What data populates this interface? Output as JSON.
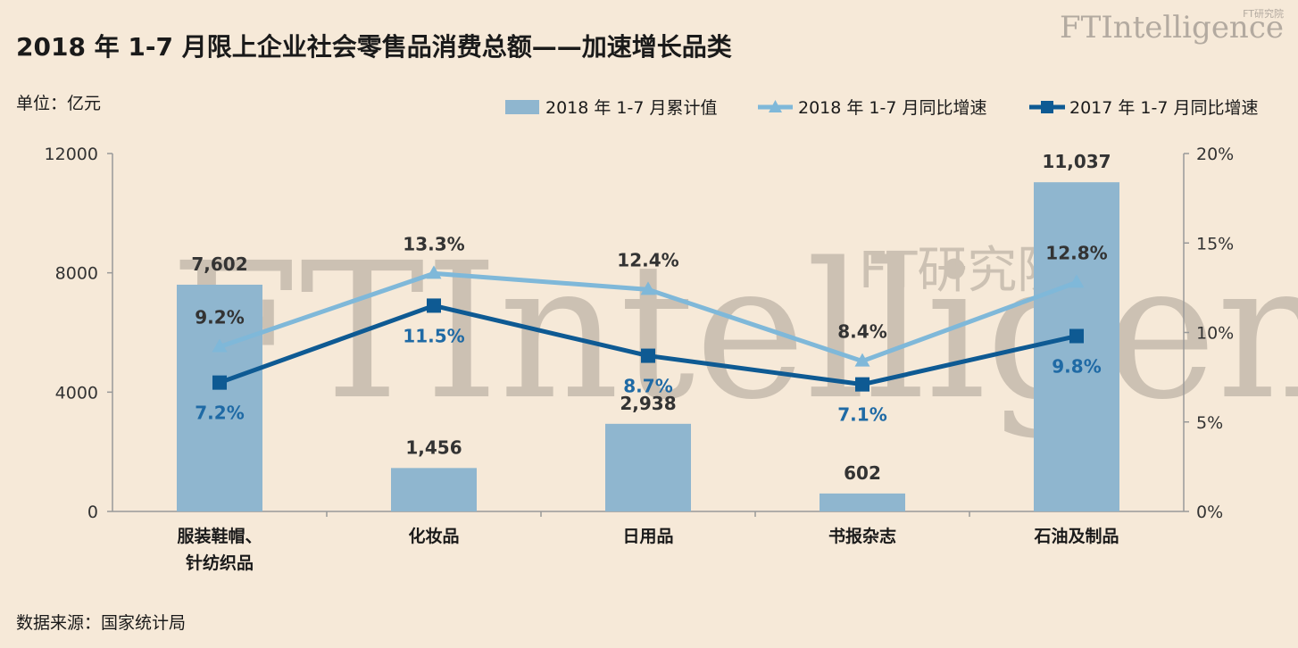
{
  "title": "2018 年 1-7 月限上企业社会零售品消费总额——加速增长品类",
  "unit_label": "单位：亿元",
  "source": "数据来源：国家统计局",
  "logo": {
    "text": "FTIntelligence",
    "tagline": "FT研究院"
  },
  "watermark": {
    "text": "FTIntelligence",
    "tagline": "FT研究院"
  },
  "colors": {
    "background": "#f6e9d8",
    "bar": "#8fb6cf",
    "line_2018": "#7fb8d9",
    "line_2017": "#0e5a93",
    "label_2017": "#1f6aa5"
  },
  "chart_data": {
    "type": "bar",
    "categories": [
      "服装鞋帽、针纺织品",
      "化妆品",
      "日用品",
      "书报杂志",
      "石油及制品"
    ],
    "category_lines": [
      [
        "服装鞋帽、",
        "针纺织品"
      ],
      [
        "化妆品"
      ],
      [
        "日用品"
      ],
      [
        "书报杂志"
      ],
      [
        "石油及制品"
      ]
    ],
    "series": [
      {
        "name": "2018 年 1-7 月累计值",
        "type": "bar",
        "axis": "left",
        "values": [
          7602,
          1456,
          2938,
          602,
          11037
        ],
        "labels": [
          "7,602",
          "1,456",
          "2,938",
          "602",
          "11,037"
        ]
      },
      {
        "name": "2018 年 1-7 月同比增速",
        "type": "line",
        "axis": "right",
        "marker": "triangle",
        "values": [
          9.2,
          13.3,
          12.4,
          8.4,
          12.8
        ],
        "labels": [
          "9.2%",
          "13.3%",
          "12.4%",
          "8.4%",
          "12.8%"
        ]
      },
      {
        "name": "2017 年 1-7 月同比增速",
        "type": "line",
        "axis": "right",
        "marker": "square",
        "values": [
          7.2,
          11.5,
          8.7,
          7.1,
          9.8
        ],
        "labels": [
          "7.2%",
          "11.5%",
          "8.7%",
          "7.1%",
          "9.8%"
        ]
      }
    ],
    "y_left": {
      "ticks": [
        "0",
        "4000",
        "8000",
        "12000"
      ],
      "range": [
        0,
        12000
      ]
    },
    "y_right": {
      "ticks": [
        "0%",
        "5%",
        "10%",
        "15%",
        "20%"
      ],
      "range": [
        0,
        20
      ]
    },
    "legend_position": "top-right",
    "grid": false
  }
}
